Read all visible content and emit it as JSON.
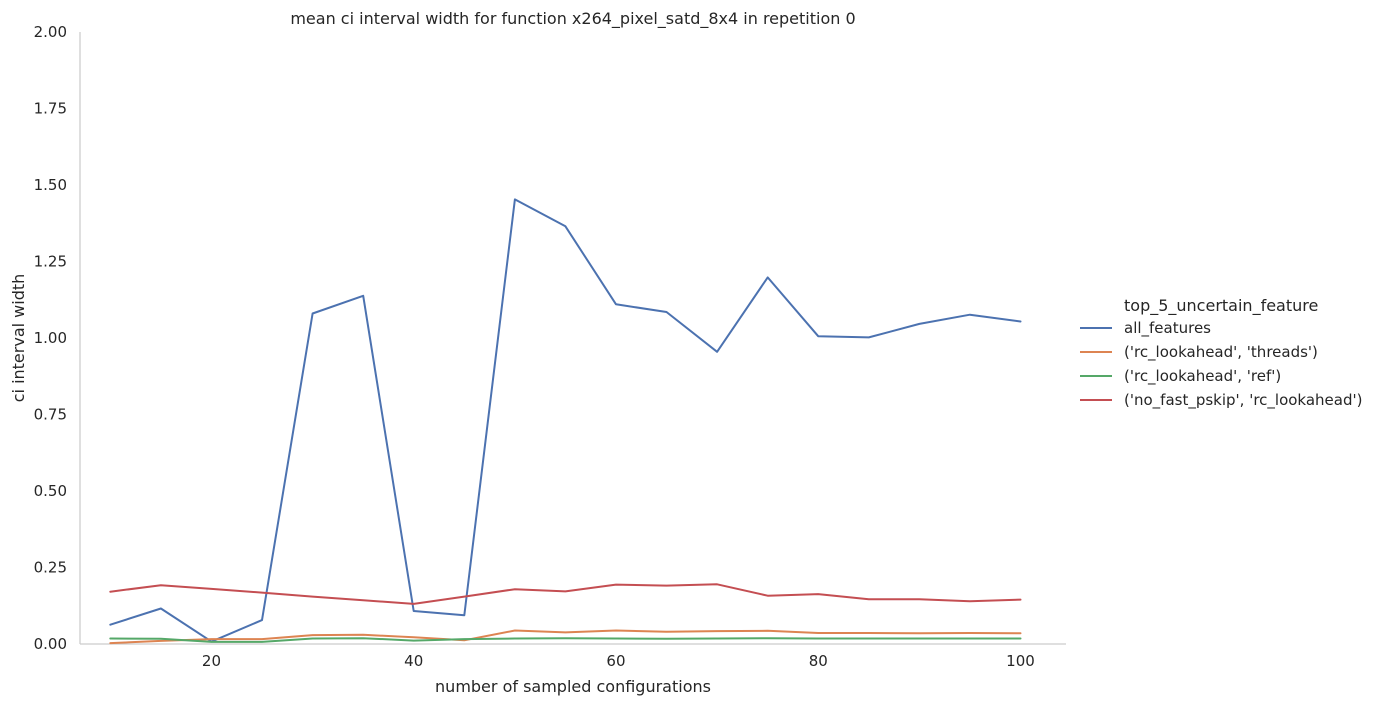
{
  "chart_data": {
    "type": "line",
    "title": "mean ci interval width for function x264_pixel_satd_8x4 in repetition 0",
    "xlabel": "number of sampled configurations",
    "ylabel": "ci interval width",
    "xlim": [
      7,
      104.5
    ],
    "ylim": [
      0,
      2.0
    ],
    "xticks": [
      20,
      40,
      60,
      80,
      100
    ],
    "yticks": [
      "0.00",
      "0.25",
      "0.50",
      "0.75",
      "1.00",
      "1.25",
      "1.50",
      "1.75",
      "2.00"
    ],
    "grid": false,
    "legend": {
      "title": "top_5_uncertain_feature",
      "placement": "right"
    },
    "x": [
      10,
      15,
      20,
      25,
      30,
      35,
      40,
      45,
      50,
      55,
      60,
      65,
      70,
      75,
      80,
      85,
      90,
      95,
      100
    ],
    "series": [
      {
        "name": "all_features",
        "color": "#4c72b0",
        "values": [
          0.063,
          0.116,
          0.008,
          0.078,
          1.08,
          1.138,
          0.108,
          0.094,
          1.453,
          1.365,
          1.11,
          1.085,
          0.955,
          1.198,
          1.006,
          1.002,
          1.046,
          1.076,
          1.054
        ]
      },
      {
        "name": "('rc_lookahead', 'threads')",
        "color": "#dd8452",
        "values": [
          0.003,
          0.01,
          0.016,
          0.016,
          0.029,
          0.03,
          0.022,
          0.012,
          0.044,
          0.038,
          0.044,
          0.04,
          0.042,
          0.043,
          0.036,
          0.036,
          0.035,
          0.036,
          0.035
        ]
      },
      {
        "name": "('rc_lookahead', 'ref')",
        "color": "#55a868",
        "values": [
          0.018,
          0.017,
          0.007,
          0.007,
          0.018,
          0.019,
          0.011,
          0.016,
          0.018,
          0.019,
          0.018,
          0.017,
          0.018,
          0.019,
          0.018,
          0.018,
          0.018,
          0.018,
          0.018
        ]
      },
      {
        "name": "('no_fast_pskip', 'rc_lookahead')",
        "color": "#c44e52",
        "values": [
          0.171,
          0.192,
          0.18,
          0.168,
          0.155,
          0.143,
          0.131,
          0.155,
          0.179,
          0.172,
          0.194,
          0.191,
          0.195,
          0.158,
          0.163,
          0.146,
          0.146,
          0.14,
          0.145
        ]
      }
    ]
  }
}
